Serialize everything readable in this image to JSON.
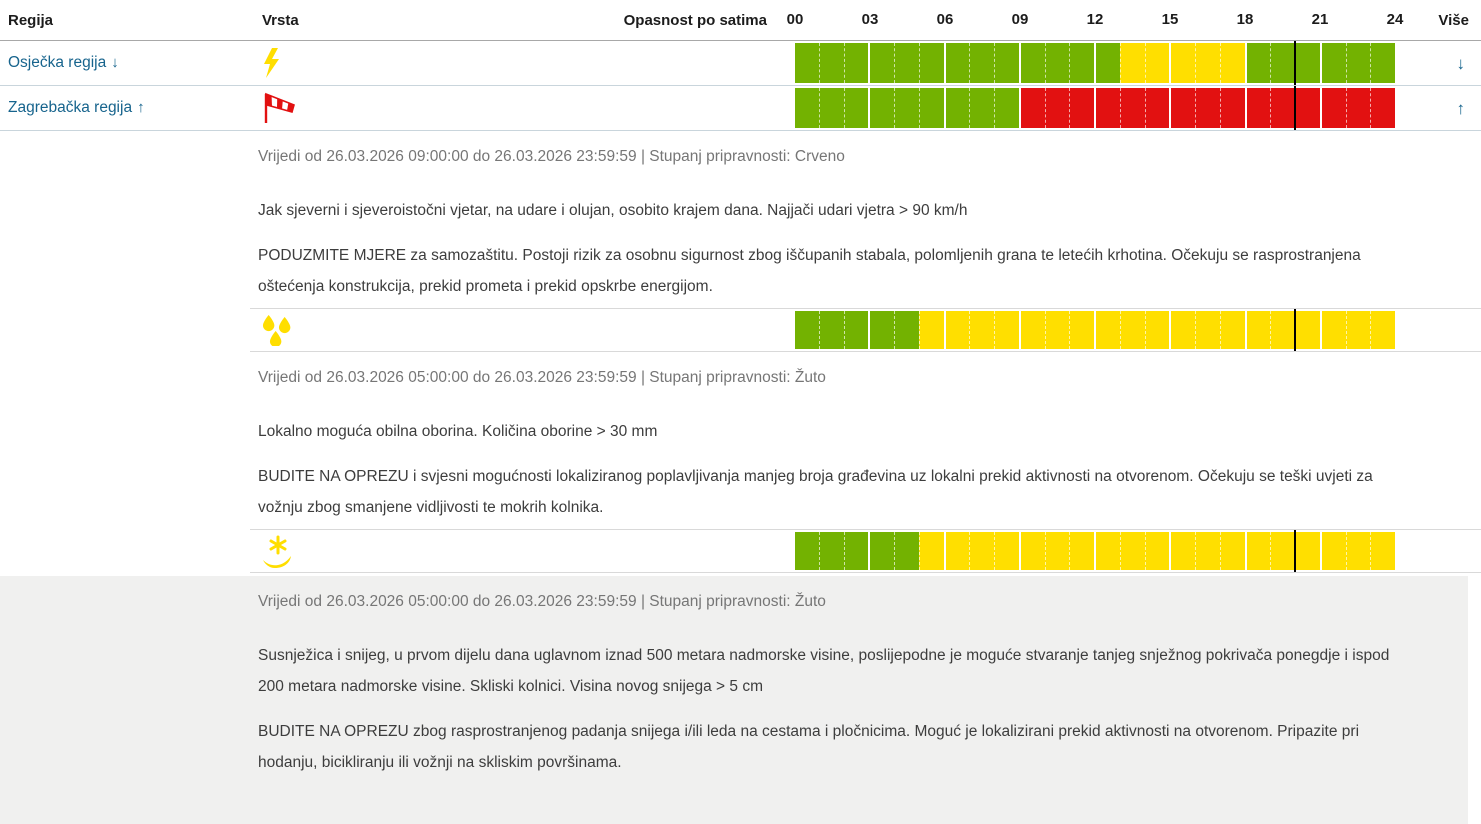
{
  "colors": {
    "green": "#73b201",
    "yellow": "#ffdf00",
    "red": "#e21111",
    "marker": "#000000",
    "link": "#17648d"
  },
  "table": {
    "columns": {
      "region": "Regija",
      "type": "Vrsta",
      "hazard": "Opasnost po satima",
      "more": "Više"
    },
    "hour_labels": [
      "00",
      "03",
      "06",
      "09",
      "12",
      "15",
      "18",
      "21",
      "24"
    ]
  },
  "regions": [
    {
      "name": "Osječka regija",
      "expand_arrow": "↓",
      "icon": "thunderstorm-icon",
      "more_arrow": "↓",
      "timeline": {
        "marker_hour": 20,
        "segments": [
          {
            "color": "green",
            "from": 0,
            "to": 13
          },
          {
            "color": "yellow",
            "from": 13,
            "to": 18
          },
          {
            "color": "green",
            "from": 18,
            "to": 24
          }
        ]
      }
    },
    {
      "name": "Zagrebačka regija",
      "expand_arrow": "↑",
      "icon": "windsock-icon",
      "more_arrow": "↑",
      "timeline": {
        "marker_hour": 20,
        "segments": [
          {
            "color": "green",
            "from": 0,
            "to": 9
          },
          {
            "color": "red",
            "from": 9,
            "to": 24
          }
        ]
      }
    }
  ],
  "warnings": [
    {
      "kind": "wind",
      "validity": "Vrijedi od 26.03.2026 09:00:00 do 26.03.2026 23:59:59 | Stupanj pripravnosti: Crveno",
      "description": "Jak sjeverni i sjeveroistočni vjetar, na udare i olujan, osobito krajem dana. Najjači udari vjetra > 90 km/h",
      "instruction": "PODUZMITE MJERE za samozaštitu. Postoji rizik za osobnu sigurnost zbog iščupanih stabala, polomljenih grana te letećih krhotina. Očekuju se rasprostranjena oštećenja konstrukcija, prekid prometa i prekid opskrbe energijom."
    },
    {
      "kind": "rain",
      "icon": "rain-icon",
      "validity": "Vrijedi od 26.03.2026 05:00:00 do 26.03.2026 23:59:59 | Stupanj pripravnosti: Žuto",
      "description": "Lokalno moguća obilna oborina. Količina oborine > 30 mm",
      "instruction": "BUDITE NA OPREZU i svjesni mogućnosti lokaliziranog poplavljivanja manjeg broja građevina uz lokalni prekid aktivnosti na otvorenom. Očekuju se teški uvjeti za vožnju zbog smanjene vidljivosti te mokrih kolnika.",
      "timeline": {
        "marker_hour": 20,
        "segments": [
          {
            "color": "green",
            "from": 0,
            "to": 5
          },
          {
            "color": "yellow",
            "from": 5,
            "to": 24
          }
        ]
      }
    },
    {
      "kind": "snow",
      "icon": "snow-icon",
      "validity": "Vrijedi od 26.03.2026 05:00:00 do 26.03.2026 23:59:59 | Stupanj pripravnosti: Žuto",
      "description": "Susnježica i snijeg, u prvom dijelu dana uglavnom iznad 500 metara nadmorske visine, poslijepodne je moguće stvaranje tanjeg snježnog pokrivača ponegdje i ispod 200 metara nadmorske visine. Skliski kolnici. Visina novog snijega > 5 cm",
      "instruction": "BUDITE NA OPREZU zbog rasprostranjenog padanja snijega i/ili leda na cestama i pločnicima. Moguć je lokalizirani prekid aktivnosti na otvorenom. Pripazite pri hodanju, bicikliranju ili vožnji na skliskim površinama.",
      "timeline": {
        "marker_hour": 20,
        "segments": [
          {
            "color": "green",
            "from": 0,
            "to": 5
          },
          {
            "color": "yellow",
            "from": 5,
            "to": 24
          }
        ]
      }
    }
  ]
}
